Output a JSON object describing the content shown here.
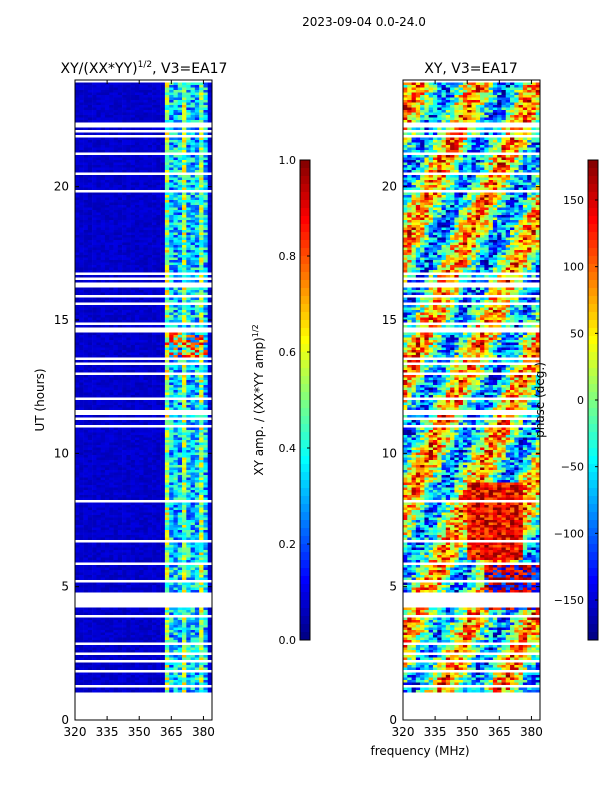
{
  "figure": {
    "suptitle": "2023-09-04 0.0-24.0",
    "xlabel_shared": "frequency (MHz)"
  },
  "chart_data": [
    {
      "type": "heatmap",
      "title_main": "XY/(XX*YY)",
      "title_sup": "1/2",
      "title_tail": ", V3=EA17",
      "ylabel": "UT (hours)",
      "xlim": [
        320,
        384
      ],
      "ylim": [
        0,
        24
      ],
      "xticks": [
        "320",
        "335",
        "350",
        "365",
        "380"
      ],
      "xtick_values": [
        320,
        335,
        350,
        365,
        380
      ],
      "yticks": [
        "0",
        "5",
        "10",
        "15",
        "20"
      ],
      "ytick_values": [
        0,
        5,
        10,
        15,
        20
      ],
      "data_start_hour": 1.0,
      "data_end_hour": 24.0,
      "active_band_mhz": [
        363,
        382
      ],
      "colorbar": {
        "label_main": "XY amp. / (XX*YY amp)",
        "label_sup": "1/2",
        "range": [
          0.0,
          1.0
        ],
        "ticks": [
          "0.0",
          "0.2",
          "0.4",
          "0.6",
          "0.8",
          "1.0"
        ],
        "tick_values": [
          0.0,
          0.2,
          0.4,
          0.6,
          0.8,
          1.0
        ],
        "colormap": "jet"
      }
    },
    {
      "type": "heatmap",
      "title": "XY, V3=EA17",
      "xlim": [
        320,
        384
      ],
      "ylim": [
        0,
        24
      ],
      "xticks": [
        "320",
        "335",
        "350",
        "365",
        "380"
      ],
      "xtick_values": [
        320,
        335,
        350,
        365,
        380
      ],
      "yticks": [
        "0",
        "5",
        "10",
        "15",
        "20"
      ],
      "ytick_values": [
        0,
        5,
        10,
        15,
        20
      ],
      "data_start_hour": 1.0,
      "data_end_hour": 24.0,
      "colorbar": {
        "label": "phase (deg.)",
        "range": [
          -180,
          180
        ],
        "ticks": [
          "−150",
          "−100",
          "−50",
          "0",
          "50",
          "100",
          "150"
        ],
        "tick_values": [
          -150,
          -100,
          -50,
          0,
          50,
          100,
          150
        ],
        "colormap": "jet"
      }
    }
  ]
}
